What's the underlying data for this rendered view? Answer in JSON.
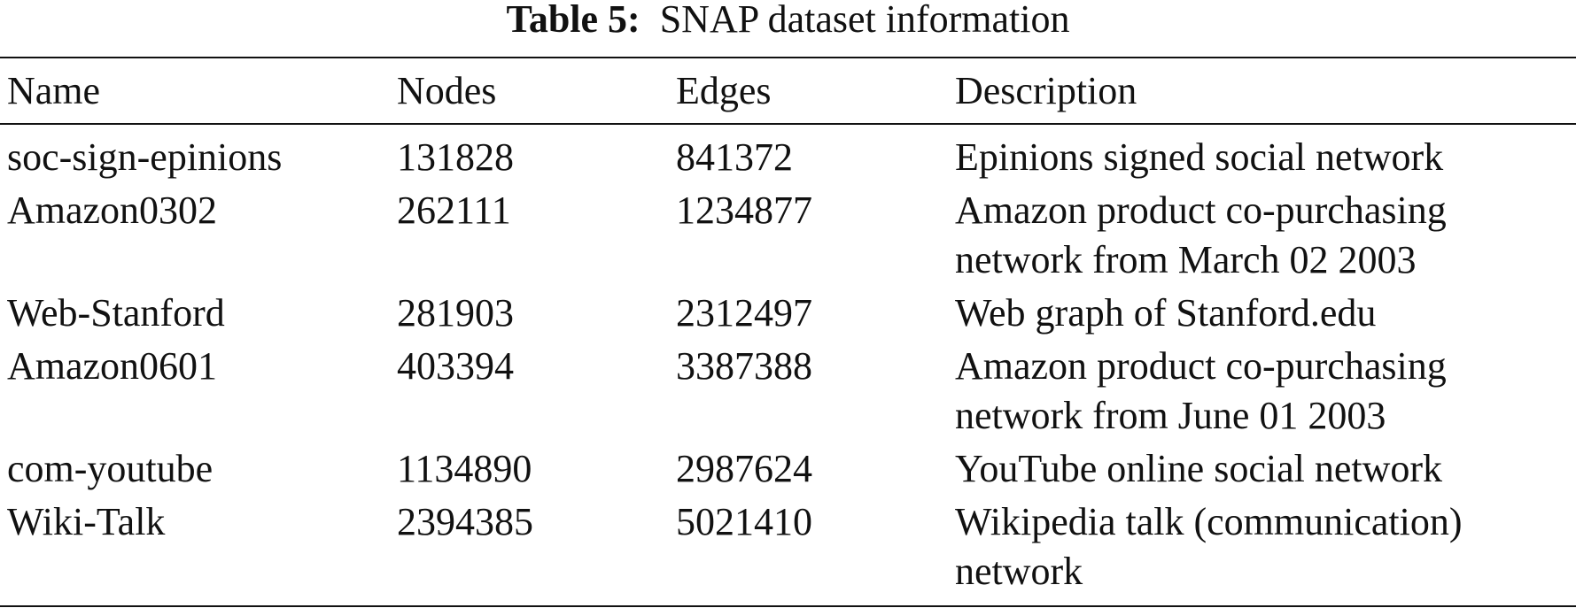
{
  "caption": {
    "label": "Table 5:",
    "text": "SNAP dataset information"
  },
  "table": {
    "headers": {
      "name": "Name",
      "nodes": "Nodes",
      "edges": "Edges",
      "description": "Description"
    },
    "rows": [
      {
        "name": "soc-sign-epinions",
        "nodes": "131828",
        "edges": "841372",
        "description": [
          "Epinions signed social network"
        ]
      },
      {
        "name": "Amazon0302",
        "nodes": "262111",
        "edges": "1234877",
        "description": [
          "Amazon product co-purchasing",
          "network from March 02 2003"
        ]
      },
      {
        "name": "Web-Stanford",
        "nodes": "281903",
        "edges": "2312497",
        "description": [
          "Web graph of Stanford.edu"
        ]
      },
      {
        "name": "Amazon0601",
        "nodes": "403394",
        "edges": "3387388",
        "description": [
          "Amazon product co-purchasing",
          "network from June 01 2003"
        ]
      },
      {
        "name": "com-youtube",
        "nodes": "1134890",
        "edges": "2987624",
        "description": [
          "YouTube online social network"
        ]
      },
      {
        "name": "Wiki-Talk",
        "nodes": "2394385",
        "edges": "5021410",
        "description": [
          "Wikipedia talk (communication)",
          "network"
        ]
      }
    ]
  }
}
